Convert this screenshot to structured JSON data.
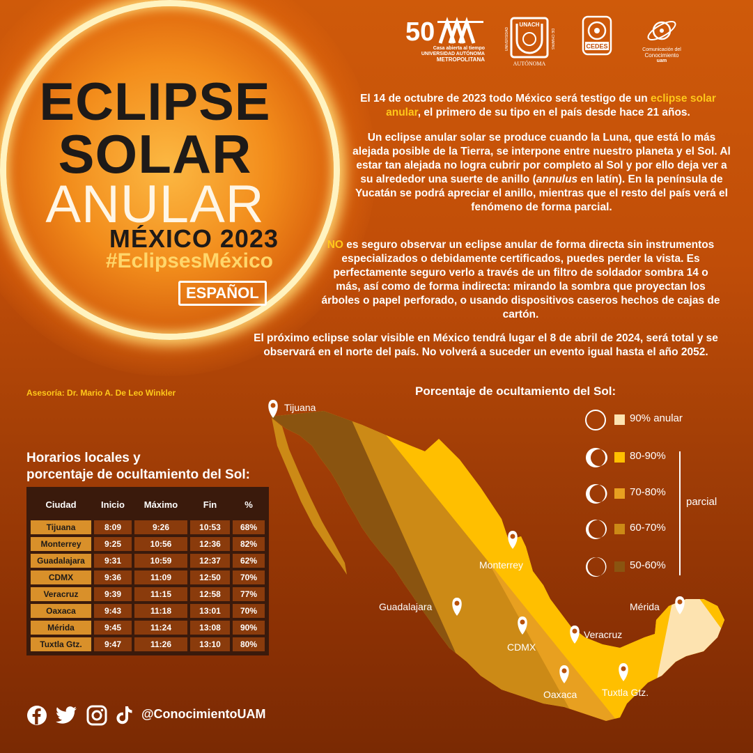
{
  "title": {
    "line1": "ECLIPSE",
    "line2": "SOLAR",
    "line3": "ANULAR",
    "line4": "MÉXICO 2023",
    "hashtag": "#EclipsesMéxico",
    "language": "ESPAÑOL"
  },
  "logos": {
    "uam_sub1": "Casa abierta al tiempo",
    "uam_sub2": "UNIVERSIDAD AUTÓNOMA",
    "uam_sub3": "METROPOLITANA",
    "unach_name": "UNACH",
    "unach_left": "UNIVERSIDAD",
    "unach_right": "DE CHIAPAS",
    "unach_bottom": "AUTÓNOMA",
    "cedes": "CEDES",
    "conoc_line1": "Comunicación del",
    "conoc_line2": "Conocimiento",
    "conoc_line3": "uam"
  },
  "paragraphs": {
    "p1_a": "El 14 de octubre de 2023 todo México será testigo de un ",
    "p1_hl": "eclipse solar anular",
    "p1_b": ", el primero de su tipo en el país desde hace 21 años.",
    "p2_a": "Un eclipse anular solar se produce cuando la Luna, que está lo más alejada posible de la Tierra, se interpone entre nuestro planeta y el Sol. Al estar tan alejada no logra cubrir por completo al Sol y por ello deja ver a su alrededor una suerte de anillo (",
    "p2_it": "annulus",
    "p2_b": " en latín). En la península de Yucatán se podrá apreciar el anillo, mientras que el resto del país verá el fenómeno de forma parcial.",
    "p3_hl": "NO",
    "p3_a": " es seguro observar un eclipse anular de forma directa sin instrumentos especializados o debidamente certificados, puedes perder la vista. Es perfectamente seguro verlo a través de un filtro de soldador sombra 14 o más, así como de forma indirecta: mirando la sombra que proyectan los árboles o papel perforado, o usando dispositivos caseros hechos de cajas de cartón.",
    "p4": "El próximo eclipse solar visible en México tendrá lugar el 8 de abril de 2024, será total y se observará en el norte del país. No volverá a suceder un evento igual hasta el año 2052."
  },
  "advisor": "Asesoría: Dr. Mario A. De Leo Winkler",
  "table": {
    "title_line1": "Horarios locales y",
    "title_line2": "porcentaje de ocultamiento del Sol:",
    "headers": [
      "Ciudad",
      "Inicio",
      "Máximo",
      "Fin",
      "%"
    ],
    "rows": [
      [
        "Tijuana",
        "8:09",
        "9:26",
        "10:53",
        "68%"
      ],
      [
        "Monterrey",
        "9:25",
        "10:56",
        "12:36",
        "82%"
      ],
      [
        "Guadalajara",
        "9:31",
        "10:59",
        "12:37",
        "62%"
      ],
      [
        "CDMX",
        "9:36",
        "11:09",
        "12:50",
        "70%"
      ],
      [
        "Veracruz",
        "9:39",
        "11:15",
        "12:58",
        "77%"
      ],
      [
        "Oaxaca",
        "9:43",
        "11:18",
        "13:01",
        "70%"
      ],
      [
        "Mérida",
        "9:45",
        "11:24",
        "13:08",
        "90%"
      ],
      [
        "Tuxtla Gtz.",
        "9:47",
        "11:26",
        "13:10",
        "80%"
      ]
    ]
  },
  "legend": {
    "title": "Porcentaje de ocultamiento del Sol:",
    "items": [
      {
        "label": "90%  anular",
        "color": "#fde3b0",
        "icon": "annular-ring-icon"
      },
      {
        "label": "80-90%",
        "color": "#ffbf00",
        "icon": "crescent-icon"
      },
      {
        "label": "70-80%",
        "color": "#e8a020",
        "icon": "crescent-icon"
      },
      {
        "label": "60-70%",
        "color": "#cc8a16",
        "icon": "crescent-icon"
      },
      {
        "label": "50-60%",
        "color": "#8a5410",
        "icon": "crescent-icon"
      }
    ],
    "group_label": "parcial"
  },
  "map": {
    "cities": [
      "Tijuana",
      "Monterrey",
      "Guadalajara",
      "CDMX",
      "Veracruz",
      "Oaxaca",
      "Tuxtla Gtz.",
      "Mérida"
    ]
  },
  "social": {
    "icons": [
      "facebook-icon",
      "twitter-icon",
      "instagram-icon",
      "tiktok-icon"
    ],
    "handle": "@ConocimientoUAM"
  }
}
